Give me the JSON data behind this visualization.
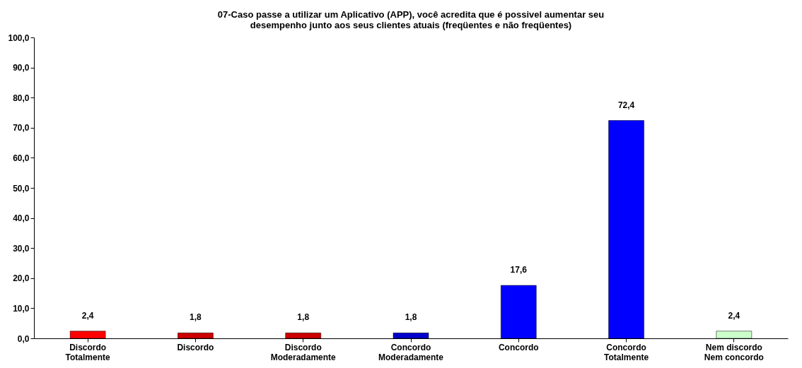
{
  "chart_data": {
    "type": "bar",
    "title": "07-Caso passe a utilizar um Aplicativo (APP), você acredita que é possivel aumentar seu desempenho junto aos seus clientes atuais (freqüentes e não freqüentes)",
    "categories": [
      "Discordo Totalmente",
      "Discordo",
      "Discordo Moderadamente",
      "Concordo Moderadamente",
      "Concordo",
      "Concordo Totalmente",
      "Nem discordo Nem concordo"
    ],
    "values": [
      2.4,
      1.8,
      1.8,
      1.8,
      17.6,
      72.4,
      2.4
    ],
    "value_labels": [
      "2,4",
      "1,8",
      "1,8",
      "1,8",
      "17,6",
      "72,4",
      "2,4"
    ],
    "colors": [
      "#ff0000",
      "#cc0000",
      "#cc0000",
      "#0000cc",
      "#0000ff",
      "#0000ff",
      "#ccffcc"
    ],
    "ylim": [
      0,
      100
    ],
    "yticks": [
      {
        "value": 0,
        "label": "0,0"
      },
      {
        "value": 10,
        "label": "10,0"
      },
      {
        "value": 20,
        "label": "20,0"
      },
      {
        "value": 30,
        "label": "30,0"
      },
      {
        "value": 40,
        "label": "40,0"
      },
      {
        "value": 50,
        "label": "50,0"
      },
      {
        "value": 60,
        "label": "60,0"
      },
      {
        "value": 70,
        "label": "70,0"
      },
      {
        "value": 80,
        "label": "80,0"
      },
      {
        "value": 90,
        "label": "90,0"
      },
      {
        "value": 100,
        "label": "100,0"
      }
    ],
    "grid": false
  }
}
